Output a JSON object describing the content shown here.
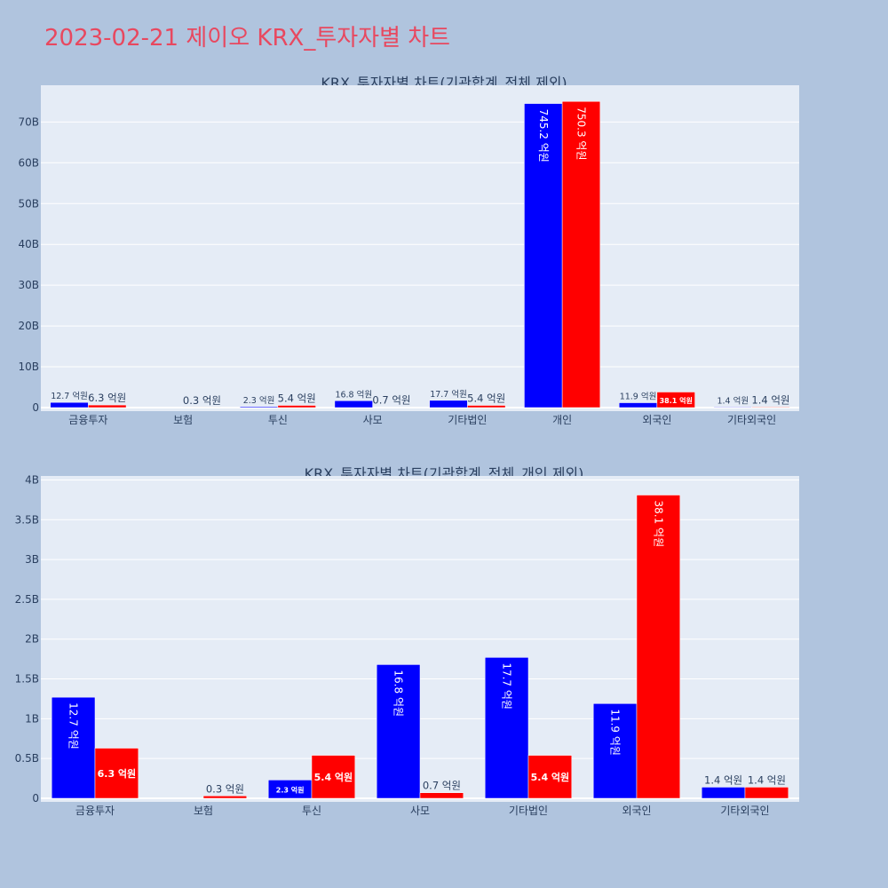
{
  "page": {
    "title": "2023-02-21 제이오 KRX_투자자별 차트"
  },
  "colors": {
    "buy": "#0000ff",
    "sell": "#ff0000",
    "plot_bg": "#e5ecf6",
    "page_bg": "#b0c4de",
    "title": "#e8485f"
  },
  "chart_data": [
    {
      "type": "bar",
      "title": "KRX_투자자별 차트(기관합계_전체 제외)",
      "categories": [
        "금융투자",
        "보험",
        "투신",
        "사모",
        "기타법인",
        "개인",
        "외국인",
        "기타외국인"
      ],
      "series": [
        {
          "color": "#0000ff",
          "values": [
            1.27,
            0,
            0.23,
            1.68,
            1.77,
            74.52,
            1.19,
            0.14
          ],
          "labels": [
            "12.7 억원",
            "",
            "2.3 억원",
            "16.8 억원",
            "17.7 억원",
            "745.2 억원",
            "11.9 억원",
            "1.4 억원"
          ]
        },
        {
          "color": "#ff0000",
          "values": [
            0.63,
            0.03,
            0.54,
            0.07,
            0.54,
            75.03,
            3.81,
            0.14
          ],
          "labels": [
            "6.3 억원",
            "0.3 억원",
            "5.4 억원",
            "0.7 억원",
            "5.4 억원",
            "750.3 억원",
            "38.1 억원",
            "1.4 억원"
          ]
        }
      ],
      "yunit": "B",
      "yticks": [
        0,
        10,
        20,
        30,
        40,
        50,
        60,
        70
      ],
      "ytick_labels": [
        "0",
        "10B",
        "20B",
        "30B",
        "40B",
        "50B",
        "60B",
        "70B"
      ],
      "ylim": [
        0,
        79
      ]
    },
    {
      "type": "bar",
      "title": "KRX_투자자별 차트(기관합계_전체_개인 제외)",
      "categories": [
        "금융투자",
        "보험",
        "투신",
        "사모",
        "기타법인",
        "외국인",
        "기타외국인"
      ],
      "series": [
        {
          "color": "#0000ff",
          "values": [
            1.27,
            0,
            0.23,
            1.68,
            1.77,
            1.19,
            0.14
          ],
          "labels": [
            "12.7 억원",
            "",
            "2.3 억원",
            "16.8 억원",
            "17.7 억원",
            "11.9 억원",
            "1.4 억원"
          ]
        },
        {
          "color": "#ff0000",
          "values": [
            0.63,
            0.03,
            0.54,
            0.07,
            0.54,
            3.81,
            0.14
          ],
          "labels": [
            "6.3 억원",
            "0.3 억원",
            "5.4 억원",
            "0.7 억원",
            "5.4 억원",
            "38.1 억원",
            "1.4 억원"
          ]
        }
      ],
      "yunit": "B",
      "yticks": [
        0,
        0.5,
        1,
        1.5,
        2,
        2.5,
        3,
        3.5,
        4
      ],
      "ytick_labels": [
        "0",
        "0.5B",
        "1B",
        "1.5B",
        "2B",
        "2.5B",
        "3B",
        "3.5B",
        "4B"
      ],
      "ylim": [
        0,
        4.05
      ]
    }
  ]
}
